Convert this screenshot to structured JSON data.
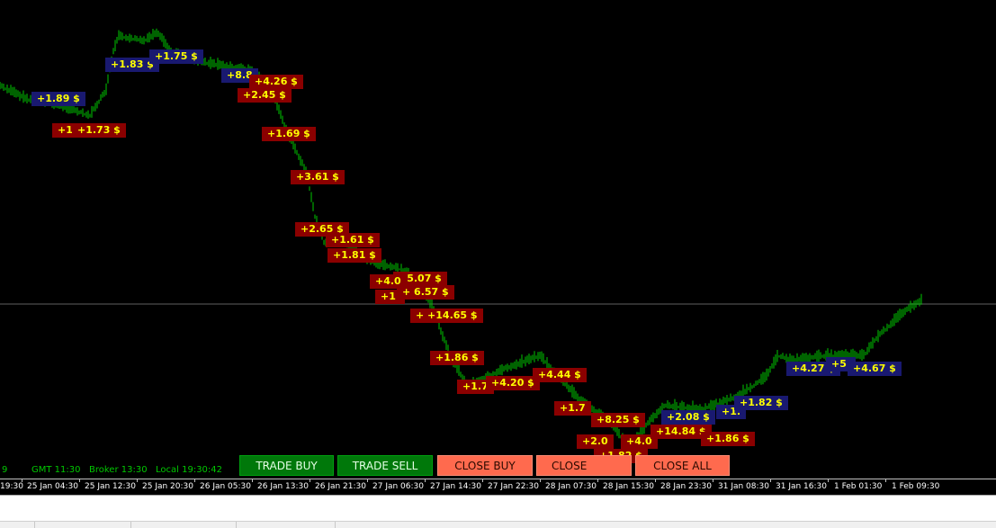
{
  "info": {
    "left_fragment": "9",
    "gmt": "GMT 11:30",
    "broker": "Broker 13:30",
    "local": "Local 19:30:42"
  },
  "buttons": {
    "trade_buy": "TRADE BUY",
    "trade_sell": "TRADE SELL",
    "close_buy": "CLOSE BUY",
    "close_sell": "CLOSE",
    "close_all": "CLOSE ALL"
  },
  "time_axis": [
    "19:30",
    "25 Jan 04:30",
    "25 Jan 12:30",
    "25 Jan 20:30",
    "26 Jan 05:30",
    "26 Jan 13:30",
    "26 Jan 21:30",
    "27 Jan 06:30",
    "27 Jan 14:30",
    "27 Jan 22:30",
    "28 Jan 07:30",
    "28 Jan 15:30",
    "28 Jan 23:30",
    "31 Jan 08:30",
    "31 Jan 16:30",
    "1 Feb 01:30",
    "1 Feb 09:30"
  ],
  "labels": [
    {
      "text": "+1.89 $",
      "type": "buy"
    },
    {
      "text": "+1",
      "type": "sell"
    },
    {
      "text": "+1.73 $",
      "type": "sell"
    },
    {
      "text": "+1.83 $",
      "type": "buy"
    },
    {
      "text": "+1.75 $",
      "type": "buy"
    },
    {
      "text": "+8.8",
      "type": "buy"
    },
    {
      "text": "+4.26 $",
      "type": "sell"
    },
    {
      "text": "+2.45 $",
      "type": "sell"
    },
    {
      "text": "+1.69 $",
      "type": "sell"
    },
    {
      "text": "+3.61 $",
      "type": "sell"
    },
    {
      "text": "+2.65 $",
      "type": "sell"
    },
    {
      "text": "+1.61 $",
      "type": "sell"
    },
    {
      "text": "+1.81 $",
      "type": "sell"
    },
    {
      "text": "+5.07 $",
      "type": "sell"
    },
    {
      "text": "+4.0",
      "type": "sell"
    },
    {
      "text": "+1.",
      "type": "sell"
    },
    {
      "text": "+ 6.57 $",
      "type": "sell"
    },
    {
      "text": "+ +14.65 $",
      "type": "sell"
    },
    {
      "text": "+1.86 $",
      "type": "sell"
    },
    {
      "text": "+1.7",
      "type": "sell"
    },
    {
      "text": "+4.20 $",
      "type": "sell"
    },
    {
      "text": "+4.44 $",
      "type": "sell"
    },
    {
      "text": "+1.7",
      "type": "sell"
    },
    {
      "text": "+8.25 $",
      "type": "sell"
    },
    {
      "text": "+2.0",
      "type": "sell"
    },
    {
      "text": "+4.0",
      "type": "sell"
    },
    {
      "text": "+1.82 $",
      "type": "sell"
    },
    {
      "text": "+14.84 $",
      "type": "sell"
    },
    {
      "text": "+2.08 $",
      "type": "buy"
    },
    {
      "text": "+1.",
      "type": "buy"
    },
    {
      "text": "+1.82 $",
      "type": "buy"
    },
    {
      "text": "+1.86 $",
      "type": "sell"
    },
    {
      "text": "+4.27 $",
      "type": "buy"
    },
    {
      "text": "+5.",
      "type": "buy"
    },
    {
      "text": "+4.67 $",
      "type": "buy"
    }
  ],
  "colors": {
    "background": "#000000",
    "bar": "#00c800",
    "sell_label": "#8b0000",
    "buy_label": "#191970",
    "label_text": "#ffff00",
    "trade_button": "#00780a",
    "close_button": "#ff6a4e"
  }
}
